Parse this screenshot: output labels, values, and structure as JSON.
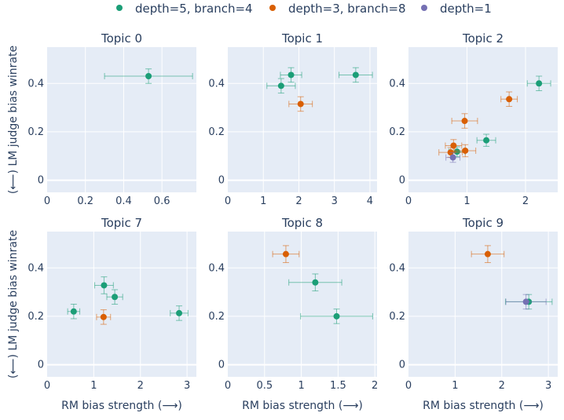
{
  "legend": {
    "series": [
      {
        "name": "depth=5, branch=4",
        "color": "#1b9e77"
      },
      {
        "name": "depth=3, branch=8",
        "color": "#d95f02"
      },
      {
        "name": "depth=1",
        "color": "#7570b3"
      }
    ]
  },
  "chart_data": [
    {
      "type": "scatter",
      "title": "Topic 0",
      "xlabel": "",
      "ylabel": "(⟵) LM judge bias winrate",
      "xlim": [
        0,
        0.78
      ],
      "ylim": [
        -0.05,
        0.55
      ],
      "xticks": [
        "0",
        "0.2",
        "0.4",
        "0.6"
      ],
      "xtick_values": [
        0,
        0.2,
        0.4,
        0.6
      ],
      "yticks": [
        "0",
        "0.2",
        "0.4"
      ],
      "ytick_values": [
        0,
        0.2,
        0.4
      ],
      "points": [
        {
          "series": 0,
          "x": 0.53,
          "y": 0.43,
          "xerr": 0.23,
          "yerr": 0.03
        }
      ]
    },
    {
      "type": "scatter",
      "title": "Topic 1",
      "xlabel": "",
      "ylabel": "",
      "xlim": [
        0,
        4.2
      ],
      "ylim": [
        -0.05,
        0.55
      ],
      "xticks": [
        "0",
        "1",
        "2",
        "3",
        "4"
      ],
      "xtick_values": [
        0,
        1,
        2,
        3,
        4
      ],
      "yticks": [
        "0",
        "0.2",
        "0.4"
      ],
      "ytick_values": [
        0,
        0.2,
        0.4
      ],
      "points": [
        {
          "series": 0,
          "x": 1.5,
          "y": 0.39,
          "xerr": 0.4,
          "yerr": 0.03
        },
        {
          "series": 0,
          "x": 1.78,
          "y": 0.435,
          "xerr": 0.3,
          "yerr": 0.03
        },
        {
          "series": 0,
          "x": 3.6,
          "y": 0.435,
          "xerr": 0.47,
          "yerr": 0.03
        },
        {
          "series": 1,
          "x": 2.05,
          "y": 0.315,
          "xerr": 0.33,
          "yerr": 0.03
        }
      ]
    },
    {
      "type": "scatter",
      "title": "Topic 2",
      "xlabel": "",
      "ylabel": "",
      "xlim": [
        0,
        2.55
      ],
      "ylim": [
        -0.05,
        0.55
      ],
      "xticks": [
        "0",
        "1",
        "2"
      ],
      "xtick_values": [
        0,
        1,
        2
      ],
      "yticks": [
        "0",
        "0.2",
        "0.4"
      ],
      "ytick_values": [
        0,
        0.2,
        0.4
      ],
      "points": [
        {
          "series": 0,
          "x": 2.23,
          "y": 0.4,
          "xerr": 0.2,
          "yerr": 0.03
        },
        {
          "series": 0,
          "x": 1.33,
          "y": 0.165,
          "xerr": 0.16,
          "yerr": 0.025
        },
        {
          "series": 0,
          "x": 0.83,
          "y": 0.118,
          "xerr": 0.14,
          "yerr": 0.02
        },
        {
          "series": 1,
          "x": 1.72,
          "y": 0.335,
          "xerr": 0.14,
          "yerr": 0.03
        },
        {
          "series": 1,
          "x": 0.96,
          "y": 0.245,
          "xerr": 0.22,
          "yerr": 0.03
        },
        {
          "series": 1,
          "x": 0.77,
          "y": 0.143,
          "xerr": 0.14,
          "yerr": 0.025
        },
        {
          "series": 1,
          "x": 0.97,
          "y": 0.122,
          "xerr": 0.18,
          "yerr": 0.025
        },
        {
          "series": 1,
          "x": 0.72,
          "y": 0.115,
          "xerr": 0.2,
          "yerr": 0.02
        },
        {
          "series": 2,
          "x": 0.76,
          "y": 0.094,
          "xerr": 0.12,
          "yerr": 0.02
        }
      ]
    },
    {
      "type": "scatter",
      "title": "Topic 7",
      "xlabel": "RM bias strength (⟶)",
      "ylabel": "(⟵) LM judge bias winrate",
      "xlim": [
        0,
        3.2
      ],
      "ylim": [
        -0.05,
        0.55
      ],
      "xticks": [
        "0",
        "1",
        "2",
        "3"
      ],
      "xtick_values": [
        0,
        1,
        2,
        3
      ],
      "yticks": [
        "0",
        "0.2",
        "0.4"
      ],
      "ytick_values": [
        0,
        0.2,
        0.4
      ],
      "points": [
        {
          "series": 0,
          "x": 0.57,
          "y": 0.22,
          "xerr": 0.13,
          "yerr": 0.03
        },
        {
          "series": 0,
          "x": 1.22,
          "y": 0.328,
          "xerr": 0.2,
          "yerr": 0.035
        },
        {
          "series": 0,
          "x": 1.45,
          "y": 0.28,
          "xerr": 0.17,
          "yerr": 0.03
        },
        {
          "series": 0,
          "x": 2.83,
          "y": 0.213,
          "xerr": 0.19,
          "yerr": 0.03
        },
        {
          "series": 1,
          "x": 1.21,
          "y": 0.197,
          "xerr": 0.15,
          "yerr": 0.03
        }
      ]
    },
    {
      "type": "scatter",
      "title": "Topic 8",
      "xlabel": "RM bias strength (⟶)",
      "ylabel": "",
      "xlim": [
        0,
        2.03
      ],
      "ylim": [
        -0.05,
        0.55
      ],
      "xticks": [
        "0",
        "0.5",
        "1",
        "1.5",
        "2"
      ],
      "xtick_values": [
        0,
        0.5,
        1,
        1.5,
        2
      ],
      "yticks": [
        "0",
        "0.2",
        "0.4"
      ],
      "ytick_values": [
        0,
        0.2,
        0.4
      ],
      "points": [
        {
          "series": 0,
          "x": 1.19,
          "y": 0.34,
          "xerr": 0.36,
          "yerr": 0.035
        },
        {
          "series": 0,
          "x": 1.48,
          "y": 0.2,
          "xerr": 0.49,
          "yerr": 0.03
        },
        {
          "series": 1,
          "x": 0.79,
          "y": 0.457,
          "xerr": 0.18,
          "yerr": 0.035
        }
      ]
    },
    {
      "type": "scatter",
      "title": "Topic 9",
      "xlabel": "RM bias strength (⟶)",
      "ylabel": "",
      "xlim": [
        0,
        3.2
      ],
      "ylim": [
        -0.05,
        0.55
      ],
      "xticks": [
        "0",
        "1",
        "2",
        "3"
      ],
      "xtick_values": [
        0,
        1,
        2,
        3
      ],
      "yticks": [
        "0",
        "0.2",
        "0.4"
      ],
      "ytick_values": [
        0,
        0.2,
        0.4
      ],
      "points": [
        {
          "series": 0,
          "x": 2.58,
          "y": 0.26,
          "xerr": 0.5,
          "yerr": 0.03
        },
        {
          "series": 1,
          "x": 1.7,
          "y": 0.457,
          "xerr": 0.35,
          "yerr": 0.035
        },
        {
          "series": 2,
          "x": 2.52,
          "y": 0.26,
          "xerr": 0.43,
          "yerr": 0.03
        }
      ]
    }
  ]
}
